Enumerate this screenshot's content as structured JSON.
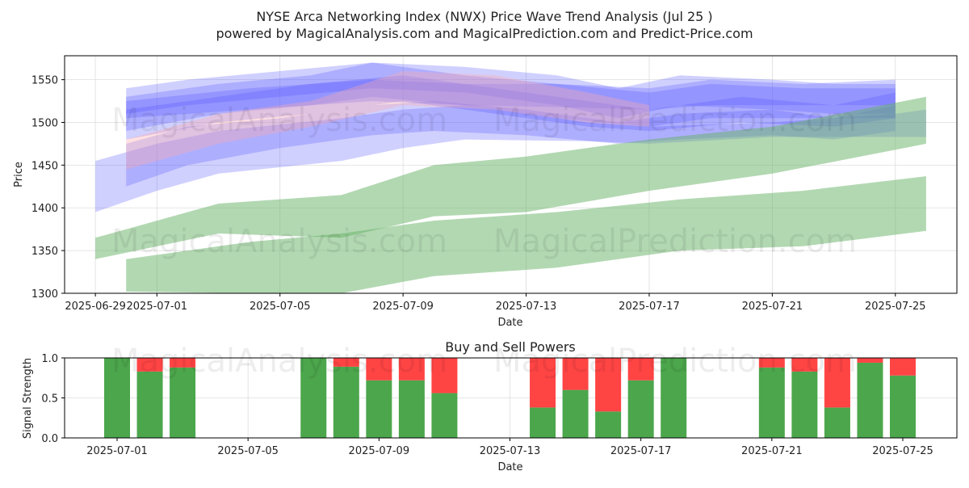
{
  "header": {
    "title": "NYSE Arca Networking Index (NWX) Price Wave Trend Analysis (Jul 25 )",
    "subtitle": "powered by MagicalAnalysis.com and MagicalPrediction.com and Predict-Price.com"
  },
  "watermarks": [
    "MagicalAnalysis.com",
    "MagicalPrediction.com"
  ],
  "colors": {
    "blue_band": "#5555ff",
    "pink_band": "#ffaaaa",
    "green_band": "#66b266",
    "buy": "#4ca64c",
    "sell": "#ff4444",
    "grid": "#dddddd"
  },
  "chart_data": [
    {
      "type": "area",
      "name": "price-wave",
      "title": "",
      "xlabel": "Date",
      "ylabel": "Price",
      "x_ticks": [
        "2025-06-29",
        "2025-07-01",
        "2025-07-05",
        "2025-07-09",
        "2025-07-13",
        "2025-07-17",
        "2025-07-21",
        "2025-07-25"
      ],
      "y_ticks": [
        1300,
        1350,
        1400,
        1450,
        1500,
        1550
      ],
      "xlim": [
        "2025-06-28",
        "2025-07-27"
      ],
      "ylim": [
        1300,
        1578
      ],
      "grid": true,
      "bands": [
        {
          "color": "blue",
          "x": [
            "2025-06-29",
            "2025-07-01",
            "2025-07-03",
            "2025-07-07",
            "2025-07-09",
            "2025-07-11",
            "2025-07-15",
            "2025-07-17",
            "2025-07-21",
            "2025-07-25",
            "2025-07-26"
          ],
          "upper": [
            1455,
            1475,
            1490,
            1505,
            1515,
            1520,
            1500,
            1495,
            1500,
            1510,
            1515
          ],
          "lower": [
            1395,
            1420,
            1440,
            1455,
            1470,
            1480,
            1478,
            1475,
            1483,
            1483,
            1483
          ]
        },
        {
          "color": "blue",
          "x": [
            "2025-06-30",
            "2025-07-02",
            "2025-07-05",
            "2025-07-08",
            "2025-07-10",
            "2025-07-13",
            "2025-07-16",
            "2025-07-18",
            "2025-07-21",
            "2025-07-23",
            "2025-07-25"
          ],
          "upper": [
            1475,
            1495,
            1505,
            1520,
            1525,
            1515,
            1500,
            1510,
            1515,
            1505,
            1520
          ],
          "lower": [
            1425,
            1450,
            1470,
            1485,
            1490,
            1485,
            1475,
            1480,
            1485,
            1480,
            1490
          ]
        },
        {
          "color": "blue",
          "x": [
            "2025-06-30",
            "2025-07-03",
            "2025-07-06",
            "2025-07-08",
            "2025-07-11",
            "2025-07-14",
            "2025-07-17",
            "2025-07-19",
            "2025-07-22",
            "2025-07-25"
          ],
          "upper": [
            1530,
            1545,
            1555,
            1570,
            1555,
            1545,
            1535,
            1545,
            1540,
            1540
          ],
          "lower": [
            1490,
            1510,
            1520,
            1530,
            1520,
            1505,
            1495,
            1505,
            1505,
            1505
          ]
        },
        {
          "color": "blue",
          "x": [
            "2025-06-30",
            "2025-07-03",
            "2025-07-06",
            "2025-07-09",
            "2025-07-12",
            "2025-07-15",
            "2025-07-17",
            "2025-07-20",
            "2025-07-23",
            "2025-07-25"
          ],
          "upper": [
            1515,
            1530,
            1545,
            1555,
            1540,
            1525,
            1515,
            1530,
            1520,
            1535
          ],
          "lower": [
            1480,
            1500,
            1510,
            1525,
            1510,
            1495,
            1490,
            1500,
            1495,
            1505
          ]
        },
        {
          "color": "blue",
          "x": [
            "2025-06-30",
            "2025-07-04",
            "2025-07-08",
            "2025-07-11",
            "2025-07-14",
            "2025-07-17",
            "2025-07-19",
            "2025-07-22",
            "2025-07-25"
          ],
          "upper": [
            1525,
            1540,
            1550,
            1545,
            1545,
            1540,
            1550,
            1545,
            1550
          ],
          "lower": [
            1505,
            1515,
            1525,
            1520,
            1518,
            1515,
            1520,
            1520,
            1520
          ]
        },
        {
          "color": "blue",
          "x": [
            "2025-06-30",
            "2025-07-02",
            "2025-07-05",
            "2025-07-08",
            "2025-07-11",
            "2025-07-14",
            "2025-07-16",
            "2025-07-18",
            "2025-07-21",
            "2025-07-23",
            "2025-07-25"
          ],
          "upper": [
            1540,
            1550,
            1560,
            1570,
            1565,
            1555,
            1540,
            1555,
            1550,
            1545,
            1545
          ],
          "lower": [
            1510,
            1520,
            1530,
            1540,
            1535,
            1520,
            1505,
            1520,
            1515,
            1510,
            1510
          ]
        },
        {
          "color": "pink",
          "x": [
            "2025-06-30",
            "2025-07-03",
            "2025-07-06",
            "2025-07-09",
            "2025-07-12",
            "2025-07-15",
            "2025-07-17"
          ],
          "upper": [
            1480,
            1510,
            1525,
            1560,
            1555,
            1535,
            1520
          ],
          "lower": [
            1445,
            1475,
            1495,
            1520,
            1515,
            1500,
            1495
          ]
        },
        {
          "color": "green",
          "x": [
            "2025-06-29",
            "2025-07-03",
            "2025-07-07",
            "2025-07-10",
            "2025-07-13",
            "2025-07-17",
            "2025-07-21",
            "2025-07-26"
          ],
          "upper": [
            1365,
            1405,
            1415,
            1450,
            1460,
            1480,
            1495,
            1530
          ],
          "lower": [
            1340,
            1370,
            1365,
            1390,
            1395,
            1420,
            1440,
            1475
          ]
        },
        {
          "color": "green",
          "x": [
            "2025-06-30",
            "2025-07-04",
            "2025-07-07",
            "2025-07-10",
            "2025-07-14",
            "2025-07-18",
            "2025-07-22",
            "2025-07-26"
          ],
          "upper": [
            1340,
            1360,
            1370,
            1385,
            1395,
            1410,
            1420,
            1437
          ],
          "lower": [
            1302,
            1300,
            1300,
            1320,
            1330,
            1350,
            1355,
            1373
          ]
        }
      ]
    },
    {
      "type": "bar",
      "name": "buy-sell-powers",
      "title": "Buy and Sell Powers",
      "xlabel": "Date",
      "ylabel": "Signal Strength",
      "x_ticks": [
        "2025-07-01",
        "2025-07-05",
        "2025-07-09",
        "2025-07-13",
        "2025-07-17",
        "2025-07-21",
        "2025-07-25"
      ],
      "y_ticks": [
        "0.0",
        "0.5",
        "1.0"
      ],
      "ylim": [
        0,
        1
      ],
      "categories": [
        "2025-07-01",
        "2025-07-02",
        "2025-07-03",
        "2025-07-07",
        "2025-07-08",
        "2025-07-09",
        "2025-07-10",
        "2025-07-11",
        "2025-07-14",
        "2025-07-15",
        "2025-07-16",
        "2025-07-17",
        "2025-07-18",
        "2025-07-21",
        "2025-07-22",
        "2025-07-23",
        "2025-07-24",
        "2025-07-25"
      ],
      "series": [
        {
          "values": [
            1.0,
            0.83,
            0.88,
            1.0,
            0.89,
            0.72,
            0.72,
            0.56,
            0.38,
            0.6,
            0.33,
            0.72,
            1.0,
            0.88,
            0.83,
            0.38,
            0.94,
            0.78
          ]
        },
        {
          "values": [
            0.0,
            0.17,
            0.12,
            0.0,
            0.11,
            0.28,
            0.28,
            0.44,
            0.62,
            0.4,
            0.67,
            0.28,
            0.0,
            0.12,
            0.17,
            0.62,
            0.06,
            0.22
          ]
        }
      ]
    }
  ]
}
